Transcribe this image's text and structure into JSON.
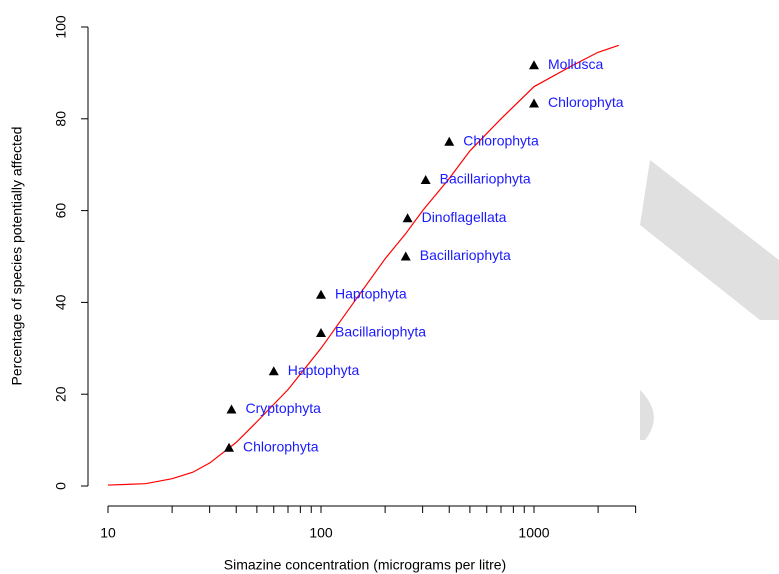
{
  "chart_data": {
    "type": "scatter",
    "x_label": "Simazine concentration (micrograms per litre)",
    "y_label": "Percentage of species potentially affected",
    "x": [
      37,
      38,
      60,
      100,
      100,
      250,
      255,
      310,
      400,
      1000,
      1000
    ],
    "values": [
      8.33,
      16.67,
      25,
      33.33,
      41.67,
      50,
      58.33,
      66.67,
      75,
      83.33,
      91.67
    ],
    "point_labels": [
      "Chlorophyta",
      "Cryptophyta",
      "Haptophyta",
      "Bacillariophyta",
      "Haptophyta",
      "Bacillariophyta",
      "Dinoflagellata",
      "Bacillariophyta",
      "Chlorophyta",
      "Chlorophyta",
      "Mollusca"
    ],
    "color": "#000000",
    "label_color": "#1a1aff",
    "curve": {
      "x": [
        10,
        15,
        20,
        25,
        30,
        40,
        50,
        70,
        100,
        140,
        200,
        250,
        300,
        400,
        500,
        700,
        1000,
        1500,
        2000,
        2500
      ],
      "values": [
        0.2,
        0.5,
        1.6,
        3,
        5,
        9.5,
        14,
        21,
        30,
        39.5,
        49.5,
        55,
        60,
        67,
        73,
        80,
        87,
        91.5,
        94.5,
        96
      ],
      "color": "#ff0000"
    },
    "xlog": true,
    "xlim": [
      10,
      3000
    ],
    "xticks": [
      10,
      100,
      1000
    ],
    "x_minor_ticks": [
      20,
      30,
      40,
      50,
      60,
      70,
      80,
      90,
      200,
      300,
      400,
      500,
      600,
      700,
      800,
      900,
      2000,
      3000
    ],
    "ylim": [
      0,
      100
    ],
    "yticks": [
      0,
      20,
      40,
      60,
      80,
      100
    ]
  }
}
